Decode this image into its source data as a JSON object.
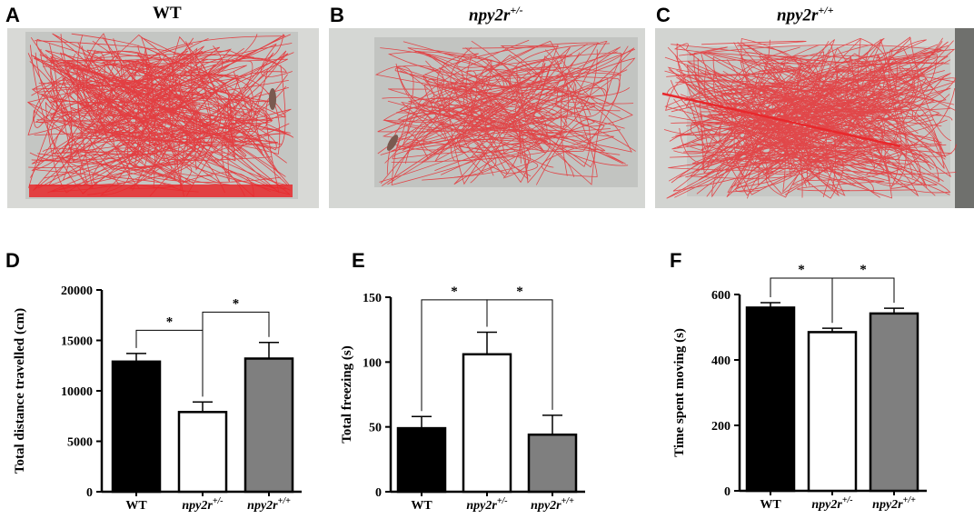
{
  "panels": {
    "A": {
      "letter": "A",
      "title": "WT"
    },
    "B": {
      "letter": "B",
      "title_base": "npy2r",
      "title_sup": "+/-"
    },
    "C": {
      "letter": "C",
      "title_base": "npy2r",
      "title_sup": "+/+"
    },
    "D": {
      "letter": "D"
    },
    "E": {
      "letter": "E"
    },
    "F": {
      "letter": "F"
    }
  },
  "colors": {
    "trace": "#e8282c",
    "tank_bg": "#c7c9c6",
    "bar_wt": "#000000",
    "bar_het": "#ffffff",
    "bar_hom": "#7f7f7f"
  },
  "chart_data": [
    {
      "panel": "D",
      "type": "bar",
      "categories": [
        "WT",
        "npy2r+/-",
        "npy2r+/+"
      ],
      "category_labels": [
        {
          "base": "WT",
          "sup": ""
        },
        {
          "base": "npy2r",
          "sup": "+/-"
        },
        {
          "base": "npy2r",
          "sup": "+/+"
        }
      ],
      "values": [
        12900,
        7900,
        13200
      ],
      "errors": [
        800,
        1000,
        1600
      ],
      "ylabel": "Total distance travelled (cm)",
      "ylim": [
        0,
        20000
      ],
      "yticks": [
        0,
        5000,
        10000,
        15000,
        20000
      ],
      "ytick_labels": [
        "0",
        "5000",
        "10000",
        "15000",
        "20000"
      ],
      "significance": [
        {
          "from": 0,
          "to": 1,
          "label": "*",
          "y": 16000
        },
        {
          "from": 1,
          "to": 2,
          "label": "*",
          "y": 17800
        }
      ]
    },
    {
      "panel": "E",
      "type": "bar",
      "categories": [
        "WT",
        "npy2r+/-",
        "npy2r+/+"
      ],
      "category_labels": [
        {
          "base": "WT",
          "sup": ""
        },
        {
          "base": "npy2r",
          "sup": "+/-"
        },
        {
          "base": "npy2r",
          "sup": "+/+"
        }
      ],
      "values": [
        49,
        106,
        44
      ],
      "errors": [
        9,
        17,
        15
      ],
      "ylabel": "Total freezing (s)",
      "ylim": [
        0,
        150
      ],
      "yticks": [
        0,
        50,
        100,
        150
      ],
      "ytick_labels": [
        "0",
        "50",
        "100",
        "150"
      ],
      "significance": [
        {
          "from": 0,
          "to": 1,
          "label": "*",
          "y": 148
        },
        {
          "from": 1,
          "to": 2,
          "label": "*",
          "y": 148
        }
      ]
    },
    {
      "panel": "F",
      "type": "bar",
      "categories": [
        "WT",
        "npy2r+/-",
        "npy2r+/+"
      ],
      "category_labels": [
        {
          "base": "WT",
          "sup": ""
        },
        {
          "base": "npy2r",
          "sup": "+/-"
        },
        {
          "base": "npy2r",
          "sup": "+/+"
        }
      ],
      "values": [
        560,
        485,
        542
      ],
      "errors": [
        15,
        12,
        16
      ],
      "ylabel": "Time spent moving (s)",
      "ylim": [
        0,
        600
      ],
      "yticks": [
        0,
        200,
        400,
        600
      ],
      "ytick_labels": [
        "0",
        "200",
        "400",
        "600"
      ],
      "significance": [
        {
          "from": 0,
          "to": 1,
          "label": "*",
          "y": 650
        },
        {
          "from": 1,
          "to": 2,
          "label": "*",
          "y": 650
        }
      ]
    }
  ]
}
